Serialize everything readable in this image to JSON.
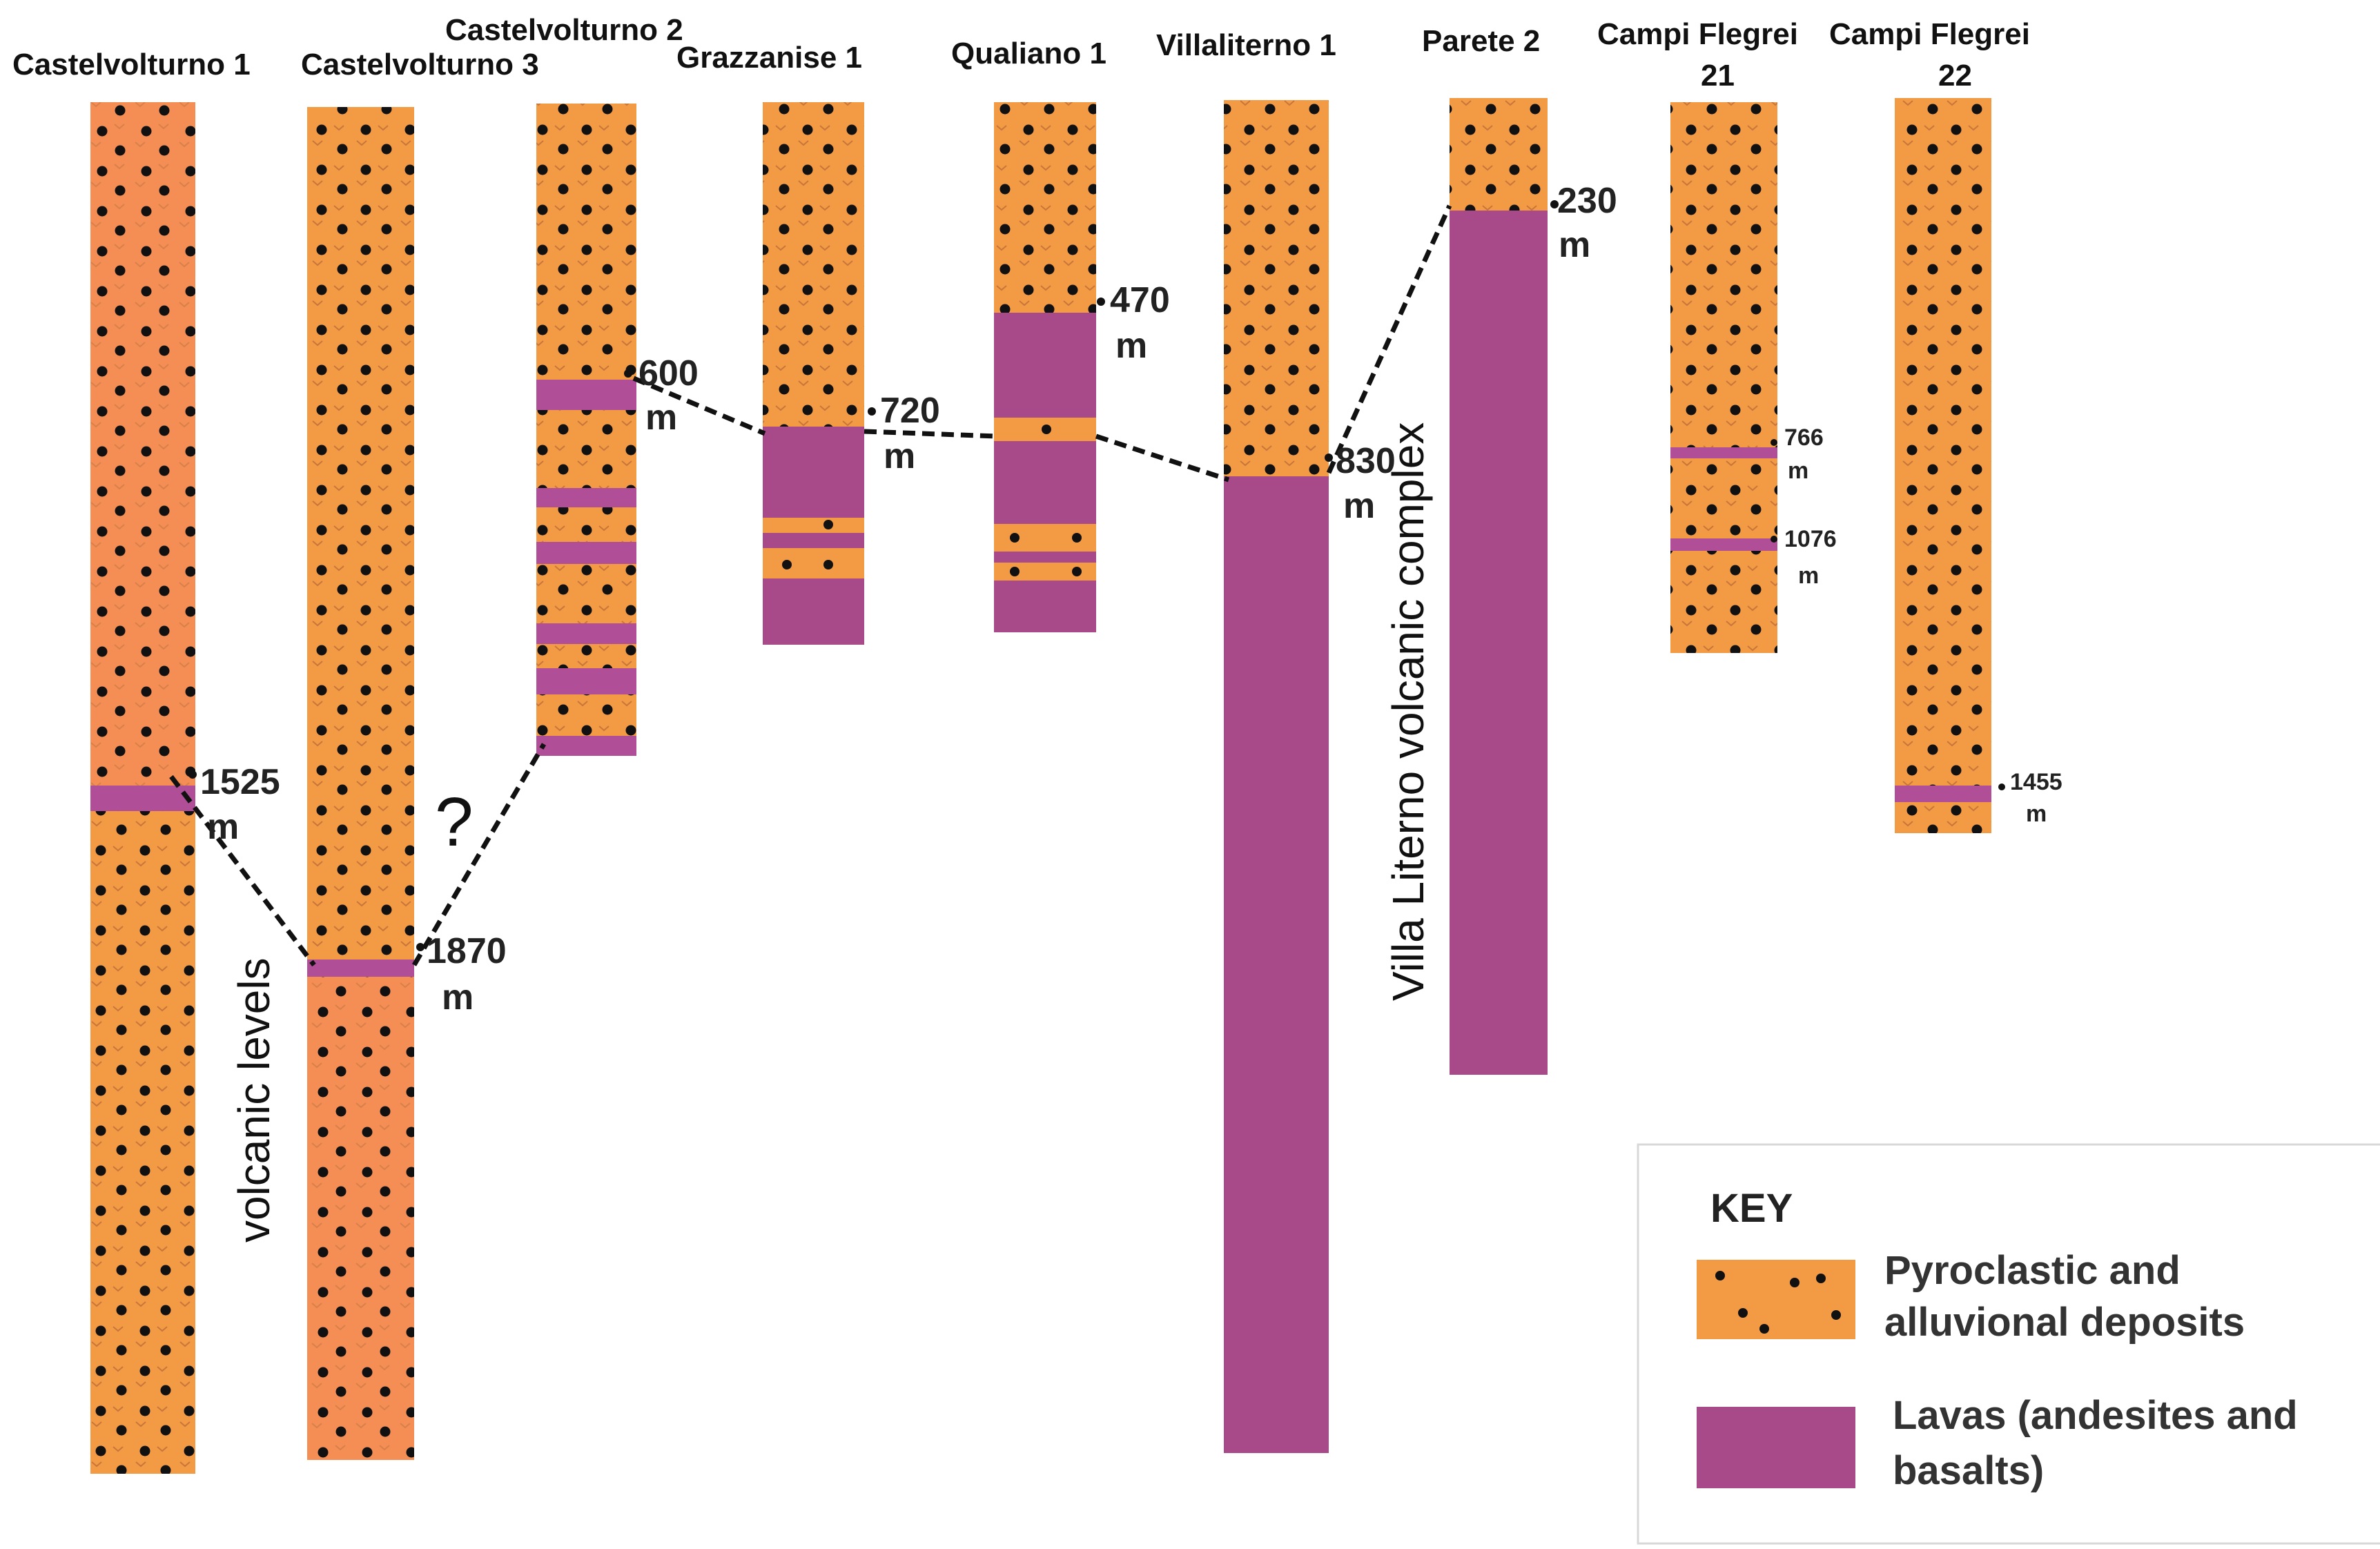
{
  "wells": [
    {
      "id": "cv1",
      "name": "Castelvolturno 1",
      "depth_label": "1525",
      "unit": "m"
    },
    {
      "id": "cv3",
      "name": "Castelvolturno 3",
      "depth_label": "1870",
      "unit": "m"
    },
    {
      "id": "cv2",
      "name": "Castelvolturno 2",
      "depth_label": "600",
      "unit": "m"
    },
    {
      "id": "gr1",
      "name": "Grazzanise 1",
      "depth_label": "720",
      "unit": "m"
    },
    {
      "id": "qu1",
      "name": "Qualiano 1",
      "depth_label": "470",
      "unit": "m"
    },
    {
      "id": "vl1",
      "name": "Villaliterno 1",
      "depth_label": "830",
      "unit": "m"
    },
    {
      "id": "pa2",
      "name": "Parete 2",
      "depth_label": "230",
      "unit": "m"
    },
    {
      "id": "cf21",
      "name_line1": "Campi Flegrei",
      "name_line2": "21",
      "depth_label_1": "766",
      "depth_label_2": "1076",
      "unit": "m"
    },
    {
      "id": "cf22",
      "name_line1": "Campi Flegrei",
      "name_line2": "22",
      "depth_label": "1455",
      "unit": "m"
    }
  ],
  "annotations": {
    "volcanic_levels": "volcanic levels",
    "villa_literno_complex": "Villa Literno volcanic complex",
    "question_mark": "?"
  },
  "key": {
    "title": "KEY",
    "pyroclastic_line1": "Pyroclastic and",
    "pyroclastic_line2": "alluvional deposits",
    "lavas_line1": "Lavas (andesites and",
    "lavas_line2": "basalts)"
  },
  "colors": {
    "orange": "#F39A45",
    "orange_light": "#F58E55",
    "lava": "#A8498A",
    "lava_band": "#B04F98",
    "dot": "#111111"
  }
}
